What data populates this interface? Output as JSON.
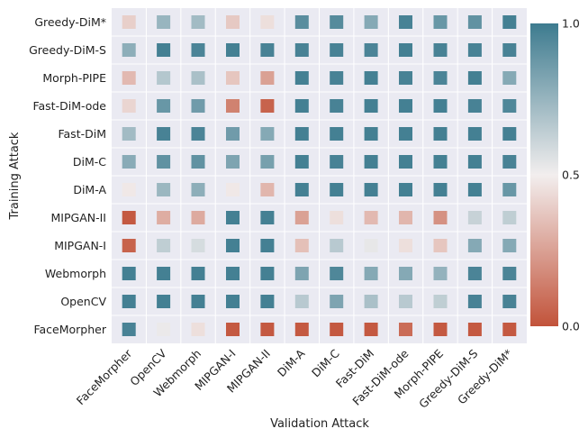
{
  "chart_data": {
    "type": "heatmap",
    "xlabel": "Validation Attack",
    "ylabel": "Training Attack",
    "columns": [
      "FaceMorpher",
      "OpenCV",
      "Webmorph",
      "MIPGAN-I",
      "MIPGAN-II",
      "DiM-A",
      "DiM-C",
      "Fast-DiM",
      "Fast-DiM-ode",
      "Morph-PIPE",
      "Greedy-DiM-S",
      "Greedy-DiM*"
    ],
    "rows": [
      "Greedy-DiM*",
      "Greedy-DiM-S",
      "Morph-PIPE",
      "Fast-DiM-ode",
      "Fast-DiM",
      "DiM-C",
      "DiM-A",
      "MIPGAN-II",
      "MIPGAN-I",
      "Webmorph",
      "OpenCV",
      "FaceMorpher"
    ],
    "values": [
      [
        0.4,
        0.75,
        0.72,
        0.38,
        0.45,
        0.92,
        0.93,
        0.8,
        0.97,
        0.88,
        0.9,
        0.98
      ],
      [
        0.78,
        0.98,
        0.96,
        0.98,
        0.97,
        0.97,
        0.97,
        0.96,
        0.98,
        0.97,
        0.97,
        0.97
      ],
      [
        0.33,
        0.67,
        0.7,
        0.37,
        0.25,
        0.98,
        0.97,
        0.98,
        0.97,
        0.96,
        0.98,
        0.8
      ],
      [
        0.42,
        0.88,
        0.86,
        0.15,
        0.05,
        0.98,
        0.97,
        0.98,
        0.98,
        0.98,
        0.97,
        0.95
      ],
      [
        0.72,
        0.97,
        0.96,
        0.86,
        0.8,
        0.98,
        0.98,
        0.98,
        0.98,
        0.98,
        0.98,
        0.98
      ],
      [
        0.79,
        0.9,
        0.9,
        0.82,
        0.84,
        0.98,
        0.97,
        0.98,
        0.98,
        0.98,
        0.98,
        0.97
      ],
      [
        0.48,
        0.74,
        0.78,
        0.48,
        0.32,
        0.98,
        0.98,
        0.98,
        0.98,
        0.98,
        0.98,
        0.88
      ],
      [
        0.02,
        0.29,
        0.28,
        0.98,
        0.98,
        0.25,
        0.45,
        0.33,
        0.32,
        0.2,
        0.62,
        0.64
      ],
      [
        0.05,
        0.64,
        0.58,
        0.98,
        0.98,
        0.35,
        0.66,
        0.53,
        0.45,
        0.37,
        0.8,
        0.8
      ],
      [
        0.98,
        0.98,
        0.98,
        0.98,
        0.98,
        0.82,
        0.95,
        0.8,
        0.8,
        0.76,
        0.96,
        0.96
      ],
      [
        0.98,
        0.98,
        0.98,
        0.98,
        0.98,
        0.66,
        0.82,
        0.7,
        0.66,
        0.64,
        0.97,
        0.97
      ],
      [
        0.97,
        0.52,
        0.45,
        0.02,
        0.02,
        0.02,
        0.02,
        0.02,
        0.08,
        0.02,
        0.02,
        0.02
      ]
    ],
    "vmin": 0.0,
    "vmax": 1.0,
    "colorbar_ticks": [
      {
        "value": 0.0,
        "label": "0.0"
      },
      {
        "value": 0.5,
        "label": "0.5"
      },
      {
        "value": 1.0,
        "label": "1.0"
      }
    ],
    "colormap": {
      "low": "#c2533a",
      "mid": "#f2eeee",
      "high": "#3d7b8f"
    },
    "background": "#eaeaf2"
  }
}
